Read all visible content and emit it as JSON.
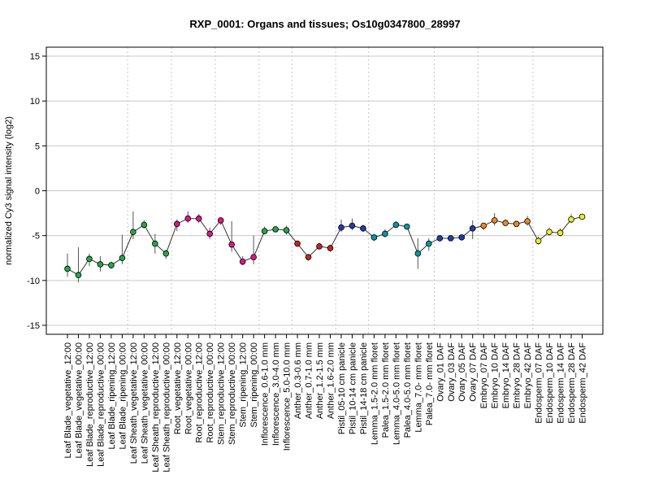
{
  "chart_data": {
    "type": "line",
    "title": "RXP_0001: Organs and tissues; Os10g0347800_28997",
    "xlabel": "",
    "ylabel": "normalized Cy3 signal intensity (log2)",
    "ylim": [
      -16,
      16
    ],
    "yticks": [
      -15,
      -10,
      -5,
      0,
      5,
      10,
      15
    ],
    "grid": true,
    "categories": [
      "Leaf Blade_vegetative_12:00",
      "Leaf Blade_vegetative_00:00",
      "Leaf Blade_reproductive_12:00",
      "Leaf Blade_reproductive_00:00",
      "Leaf Blade_ripening_12:00",
      "Leaf Blade_ripening_00:00",
      "Leaf Sheath_vegetative_12:00",
      "Leaf Sheath_vegetative_00:00",
      "Leaf Sheath_reproductive_12:00",
      "Leaf Sheath_reproductive_00:00",
      "Root_vegetative_12:00",
      "Root_vegetative_00:00",
      "Root_reproductive_12:00",
      "Root_reproductive_00:00",
      "Stem_reproductive_12:00",
      "Stem_reproductive_00:00",
      "Stem_ripening_12:00",
      "Stem_ripening_00:00",
      "Inflorescence_0.6-1.0 mm",
      "Inflorescence_3.0-4.0 mm",
      "Inflorescence_5.0-10.0 mm",
      "Anther_0.3-0.6 mm",
      "Anther_0.7-1.0 mm",
      "Anther_1.2-1.5 mm",
      "Anther_1.6-2.0 mm",
      "Pistil_05-10 cm panicle",
      "Pistil_10-14 cm panicle",
      "Pistil_14-18 cm panicle",
      "Lemma_1.5-2.0 mm floret",
      "Palea_1.5-2.0 mm floret",
      "Lemma_4.0-5.0 mm floret",
      "Palea_4.0-5.0 mm floret",
      "Lemma_7.0- mm floret",
      "Palea_7.0- mm floret",
      "Ovary_01 DAF",
      "Ovary_03 DAF",
      "Ovary_05 DAF",
      "Ovary_07 DAF",
      "Embryo_07 DAF",
      "Embryo_10 DAF",
      "Embryo_14 DAF",
      "Embryo_28 DAF",
      "Embryo_42 DAF",
      "Endosperm_07 DAF",
      "Endosperm_10 DAF",
      "Endosperm_14 DAF",
      "Endosperm_28 DAF",
      "Endosperm_42 DAF"
    ],
    "values": [
      -8.7,
      -9.4,
      -7.6,
      -8.2,
      -8.3,
      -7.5,
      -4.6,
      -3.8,
      -5.9,
      -7.0,
      -3.7,
      -3.1,
      -3.1,
      -4.8,
      -3.3,
      -6.0,
      -7.9,
      -7.4,
      -4.5,
      -4.3,
      -4.4,
      -5.9,
      -7.4,
      -6.2,
      -6.4,
      -4.1,
      -3.9,
      -4.2,
      -5.2,
      -4.8,
      -3.8,
      -4.0,
      -7.0,
      -5.9,
      -5.3,
      -5.3,
      -5.2,
      -4.2,
      -3.9,
      -3.3,
      -3.6,
      -3.7,
      -3.4,
      -5.6,
      -4.6,
      -4.7,
      -3.2,
      -2.9
    ],
    "error_low": [
      -9.6,
      -10.2,
      -8.4,
      -9.0,
      -8.7,
      -8.2,
      -5.4,
      -4.2,
      -7.0,
      -7.6,
      -4.5,
      -3.6,
      -3.6,
      -5.4,
      -3.8,
      -6.8,
      -8.3,
      -8.2,
      -4.8,
      -4.6,
      -4.9,
      -6.2,
      -7.8,
      -6.5,
      -6.8,
      -4.6,
      -4.4,
      -4.6,
      -5.6,
      -5.2,
      -4.1,
      -4.3,
      -8.7,
      -6.7,
      -5.6,
      -5.6,
      -5.5,
      -5.4,
      -4.4,
      -3.9,
      -3.9,
      -4.0,
      -3.9,
      -6.0,
      -5.0,
      -5.1,
      -3.6,
      -3.1
    ],
    "error_high": [
      -7.0,
      -6.3,
      -7.0,
      -7.3,
      -7.9,
      -4.9,
      -2.3,
      -3.3,
      -4.8,
      -6.6,
      -3.2,
      -2.3,
      -2.6,
      -4.1,
      -3.0,
      -3.4,
      -7.3,
      -5.0,
      -4.0,
      -4.0,
      -3.9,
      -5.6,
      -7.1,
      -5.8,
      -6.0,
      -3.2,
      -3.1,
      -3.8,
      -4.9,
      -4.3,
      -3.4,
      -3.7,
      -5.3,
      -5.3,
      -5.0,
      -5.0,
      -4.9,
      -3.3,
      -3.6,
      -2.5,
      -3.2,
      -3.4,
      -2.8,
      -5.1,
      -4.1,
      -4.2,
      -2.6,
      -2.6
    ],
    "point_colors": [
      "#22aa44",
      "#22aa44",
      "#22aa44",
      "#22aa44",
      "#22aa44",
      "#22aa44",
      "#22aa44",
      "#22aa44",
      "#22aa44",
      "#22aa44",
      "#e0148c",
      "#e0148c",
      "#e0148c",
      "#e0148c",
      "#e0148c",
      "#e0148c",
      "#e0148c",
      "#e0148c",
      "#22aa44",
      "#22aa44",
      "#22aa44",
      "#cc2222",
      "#cc2222",
      "#cc2222",
      "#cc2222",
      "#1e3faa",
      "#1e3faa",
      "#1e3faa",
      "#0099aa",
      "#0099aa",
      "#0099aa",
      "#0099aa",
      "#0099aa",
      "#0099aa",
      "#1e3faa",
      "#1e3faa",
      "#1e3faa",
      "#1e3faa",
      "#ee8822",
      "#ee8822",
      "#ee8822",
      "#ee8822",
      "#ee8822",
      "#eeee22",
      "#eeee22",
      "#eeee22",
      "#eeee22",
      "#eeee22"
    ],
    "group_separators_after": [
      5,
      9,
      13,
      17,
      20,
      24,
      27,
      33,
      37,
      42
    ]
  }
}
